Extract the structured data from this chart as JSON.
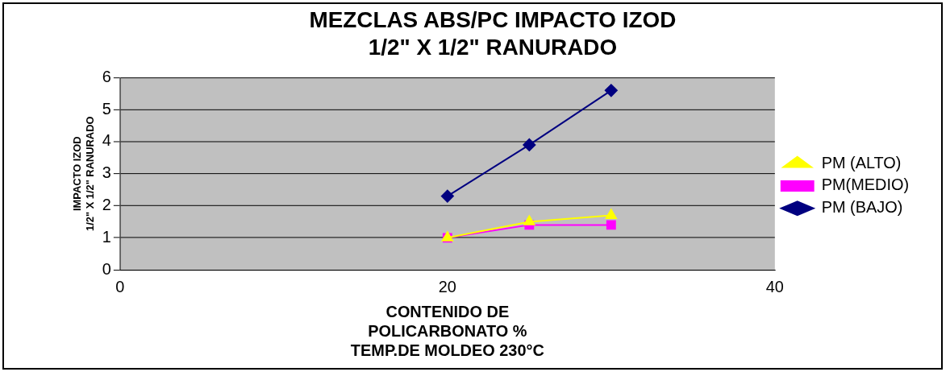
{
  "chart_data": {
    "type": "line",
    "title": "MEZCLAS ABS/PC IMPACTO IZOD\n1/2\" X 1/2\" RANURADO",
    "xlabel": "CONTENIDO DE\nPOLICARBONATO %\nTEMP.DE MOLDEO 230°C",
    "ylabel": "IMPACTO IZOD\n1/2\" X 1/2\" RANURADO",
    "x": [
      20,
      25,
      30
    ],
    "series": [
      {
        "name": "PM (BAJO)",
        "color": "#000080",
        "marker": "diamond",
        "values": [
          2.3,
          3.9,
          5.6
        ]
      },
      {
        "name": "PM(MEDIO)",
        "color": "#ff00ff",
        "marker": "square",
        "values": [
          1.0,
          1.4,
          1.4
        ]
      },
      {
        "name": "PM (ALTO)",
        "color": "#ffff00",
        "marker": "triangle",
        "values": [
          1.0,
          1.5,
          1.7
        ]
      }
    ],
    "xlim": [
      0,
      40
    ],
    "xticks": [
      0,
      20,
      40
    ],
    "ylim": [
      0,
      6
    ],
    "yticks": [
      0,
      1,
      2,
      3,
      4,
      5,
      6
    ],
    "grid": "y",
    "legend": "right"
  }
}
